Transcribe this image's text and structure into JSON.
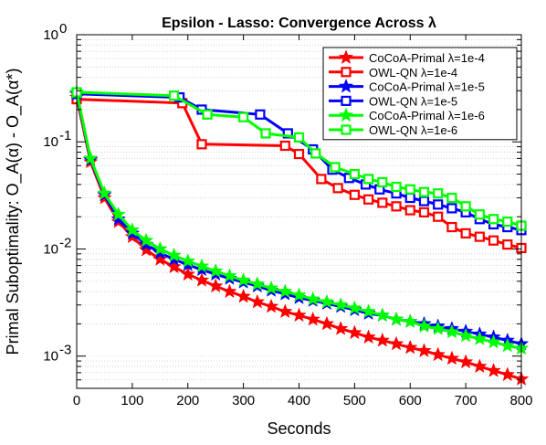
{
  "chart_data": {
    "type": "line",
    "title": "Epsilon - Lasso: Convergence Across λ",
    "xlabel": "Seconds",
    "ylabel": "Primal Suboptimality: O_A(α) - O_A(α*)",
    "xlim": [
      0,
      800
    ],
    "ylim": [
      0.0005,
      1
    ],
    "yscale": "log",
    "grid": "y-minor-dotted",
    "legend_position": "top-right",
    "x_ticks": [
      "0",
      "100",
      "200",
      "300",
      "400",
      "500",
      "600",
      "700",
      "800"
    ],
    "y_tick_bases": [
      "10",
      "10",
      "10",
      "10"
    ],
    "y_tick_exponents": [
      "0",
      "-1",
      "-2",
      "-3"
    ],
    "series": [
      {
        "name": "CoCoA-Primal λ=1e-4",
        "color": "#ff0000",
        "marker": "star",
        "x": [
          0,
          25,
          50,
          75,
          100,
          125,
          150,
          175,
          200,
          225,
          250,
          275,
          300,
          325,
          350,
          375,
          400,
          425,
          450,
          475,
          500,
          525,
          550,
          575,
          600,
          625,
          650,
          675,
          700,
          725,
          750,
          775,
          800
        ],
        "y": [
          0.26,
          0.065,
          0.03,
          0.018,
          0.013,
          0.0098,
          0.008,
          0.0068,
          0.0058,
          0.0051,
          0.0045,
          0.004,
          0.0036,
          0.0032,
          0.0029,
          0.0026,
          0.0024,
          0.0022,
          0.002,
          0.0018,
          0.00165,
          0.0015,
          0.0014,
          0.0013,
          0.0012,
          0.00112,
          0.00103,
          0.00095,
          0.00088,
          0.0008,
          0.00073,
          0.00067,
          0.00061
        ]
      },
      {
        "name": "OWL-QN λ=1e-4",
        "color": "#ff0000",
        "marker": "square",
        "x": [
          0,
          190,
          225,
          375,
          400,
          440,
          470,
          500,
          525,
          550,
          575,
          600,
          625,
          650,
          675,
          700,
          725,
          750,
          775,
          800
        ],
        "y": [
          0.25,
          0.23,
          0.095,
          0.092,
          0.077,
          0.045,
          0.037,
          0.032,
          0.029,
          0.027,
          0.025,
          0.023,
          0.022,
          0.02,
          0.016,
          0.014,
          0.013,
          0.012,
          0.011,
          0.0102
        ]
      },
      {
        "name": "CoCoA-Primal λ=1e-5",
        "color": "#0000ff",
        "marker": "star",
        "x": [
          0,
          25,
          50,
          75,
          100,
          125,
          150,
          175,
          200,
          225,
          250,
          275,
          300,
          325,
          350,
          375,
          400,
          425,
          450,
          475,
          500,
          525,
          550,
          575,
          600,
          625,
          650,
          675,
          700,
          725,
          750,
          775,
          800
        ],
        "y": [
          0.28,
          0.068,
          0.032,
          0.019,
          0.014,
          0.011,
          0.0092,
          0.008,
          0.0071,
          0.0064,
          0.0058,
          0.0053,
          0.0049,
          0.0045,
          0.0041,
          0.0038,
          0.0035,
          0.0033,
          0.0031,
          0.0029,
          0.0027,
          0.0025,
          0.0024,
          0.0022,
          0.0021,
          0.002,
          0.0019,
          0.0018,
          0.0017,
          0.0016,
          0.0015,
          0.0014,
          0.0013
        ]
      },
      {
        "name": "OWL-QN λ=1e-5",
        "color": "#0000ff",
        "marker": "square",
        "x": [
          0,
          185,
          225,
          330,
          380,
          425,
          460,
          490,
          520,
          545,
          575,
          600,
          625,
          650,
          675,
          700,
          725,
          750,
          775,
          800
        ],
        "y": [
          0.28,
          0.26,
          0.2,
          0.18,
          0.12,
          0.085,
          0.055,
          0.046,
          0.04,
          0.036,
          0.033,
          0.03,
          0.028,
          0.026,
          0.024,
          0.022,
          0.019,
          0.017,
          0.016,
          0.015
        ]
      },
      {
        "name": "CoCoA-Primal λ=1e-6",
        "color": "#00ff00",
        "marker": "star",
        "x": [
          0,
          25,
          50,
          75,
          100,
          125,
          150,
          175,
          200,
          225,
          250,
          275,
          300,
          325,
          350,
          375,
          400,
          425,
          450,
          475,
          500,
          525,
          550,
          575,
          600,
          625,
          650,
          675,
          700,
          725,
          750,
          775,
          800
        ],
        "y": [
          0.29,
          0.07,
          0.033,
          0.021,
          0.015,
          0.012,
          0.01,
          0.0087,
          0.0077,
          0.0069,
          0.0062,
          0.0056,
          0.0051,
          0.0047,
          0.0043,
          0.004,
          0.0037,
          0.0034,
          0.0032,
          0.003,
          0.0028,
          0.0026,
          0.0024,
          0.0022,
          0.0021,
          0.0019,
          0.0018,
          0.00168,
          0.00155,
          0.00145,
          0.00135,
          0.00125,
          0.00118
        ]
      },
      {
        "name": "OWL-QN λ=1e-6",
        "color": "#00ff00",
        "marker": "square",
        "x": [
          0,
          175,
          235,
          300,
          340,
          400,
          430,
          465,
          500,
          525,
          550,
          575,
          600,
          625,
          650,
          675,
          700,
          725,
          750,
          775,
          800
        ],
        "y": [
          0.29,
          0.27,
          0.18,
          0.17,
          0.12,
          0.11,
          0.078,
          0.058,
          0.05,
          0.045,
          0.042,
          0.038,
          0.036,
          0.034,
          0.033,
          0.03,
          0.025,
          0.021,
          0.019,
          0.018,
          0.0165
        ]
      }
    ]
  }
}
